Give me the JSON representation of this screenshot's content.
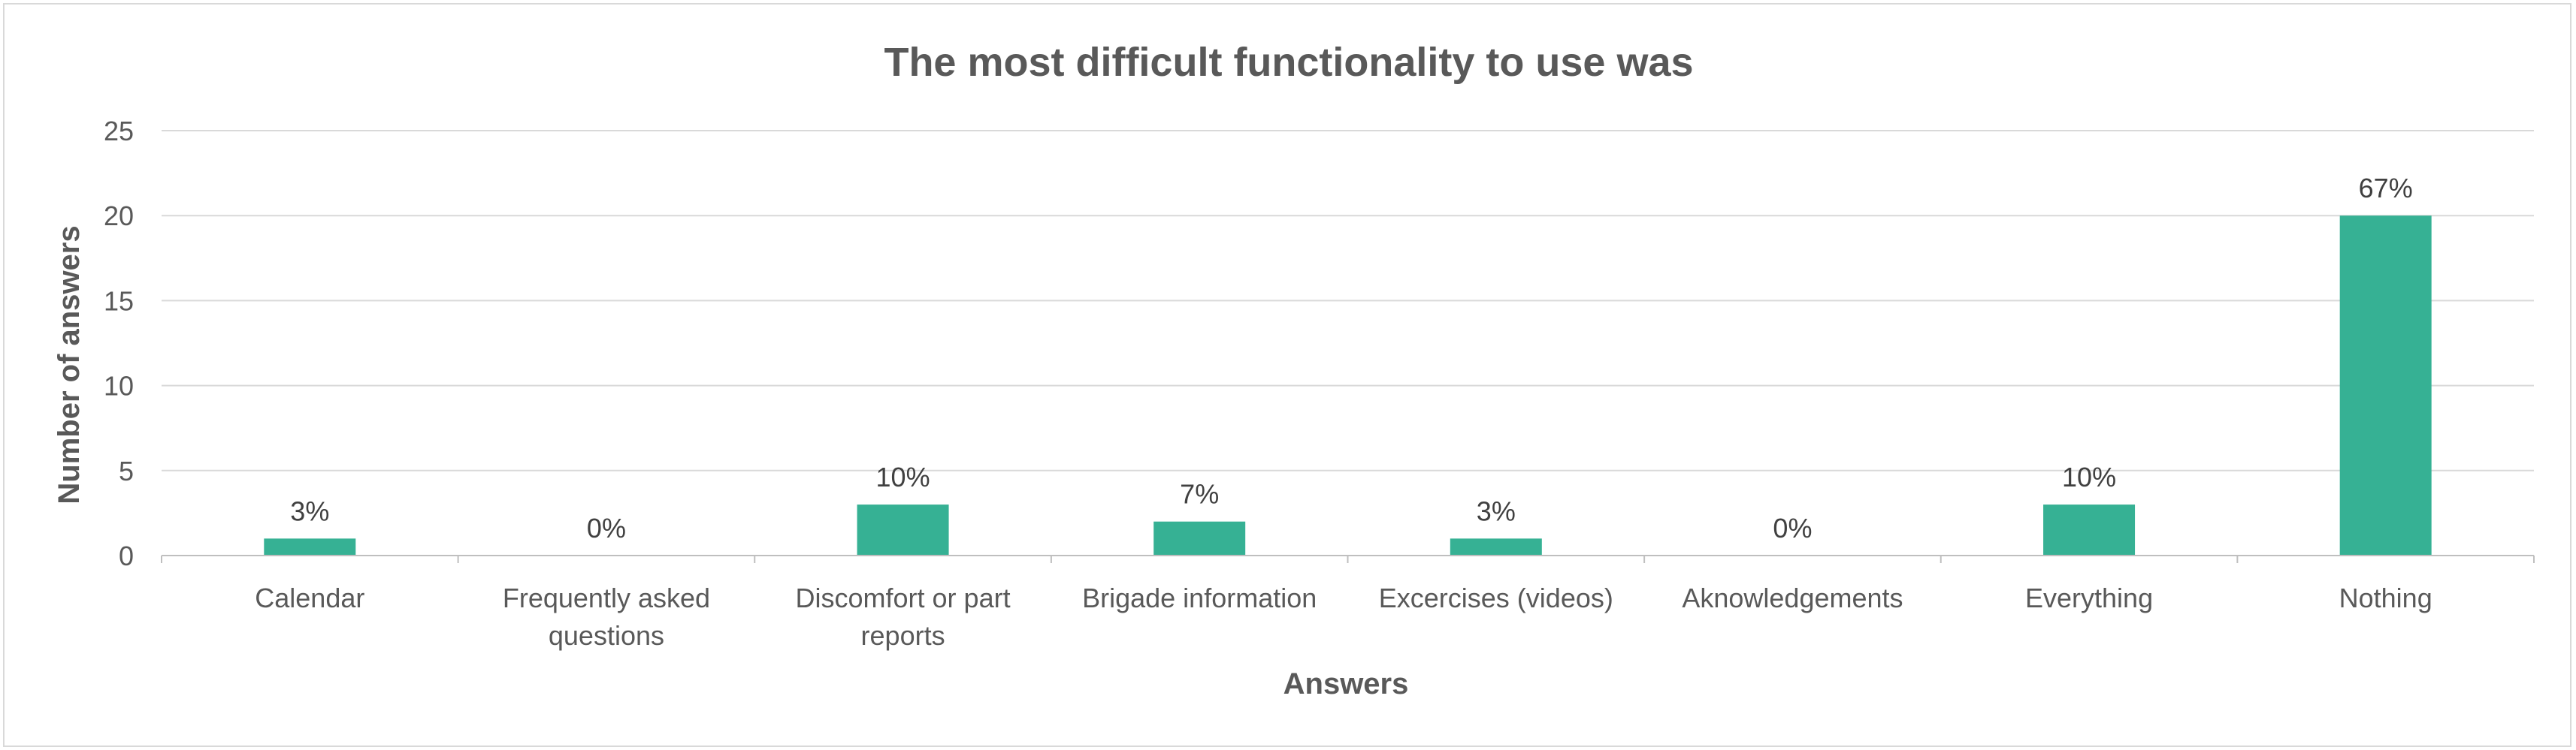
{
  "chart_data": {
    "type": "bar",
    "title": "The most difficult functionality to use was",
    "xlabel": "Answers",
    "ylabel": "Number of answers",
    "ylim": [
      0,
      25
    ],
    "yticks": [
      0,
      5,
      10,
      15,
      20,
      25
    ],
    "grid": true,
    "legend": "none",
    "bar_color": "#36b194",
    "categories": [
      [
        "Calendar"
      ],
      [
        "Frequently asked",
        "questions"
      ],
      [
        "Discomfort or part",
        "reports"
      ],
      [
        "Brigade information"
      ],
      [
        "Excercises (videos)"
      ],
      [
        "Aknowledgements"
      ],
      [
        "Everything"
      ],
      [
        "Nothing"
      ]
    ],
    "values": [
      1,
      0,
      3,
      2,
      1,
      0,
      3,
      20
    ],
    "data_labels": [
      "3%",
      "0%",
      "10%",
      "7%",
      "3%",
      "0%",
      "10%",
      "67%"
    ]
  }
}
